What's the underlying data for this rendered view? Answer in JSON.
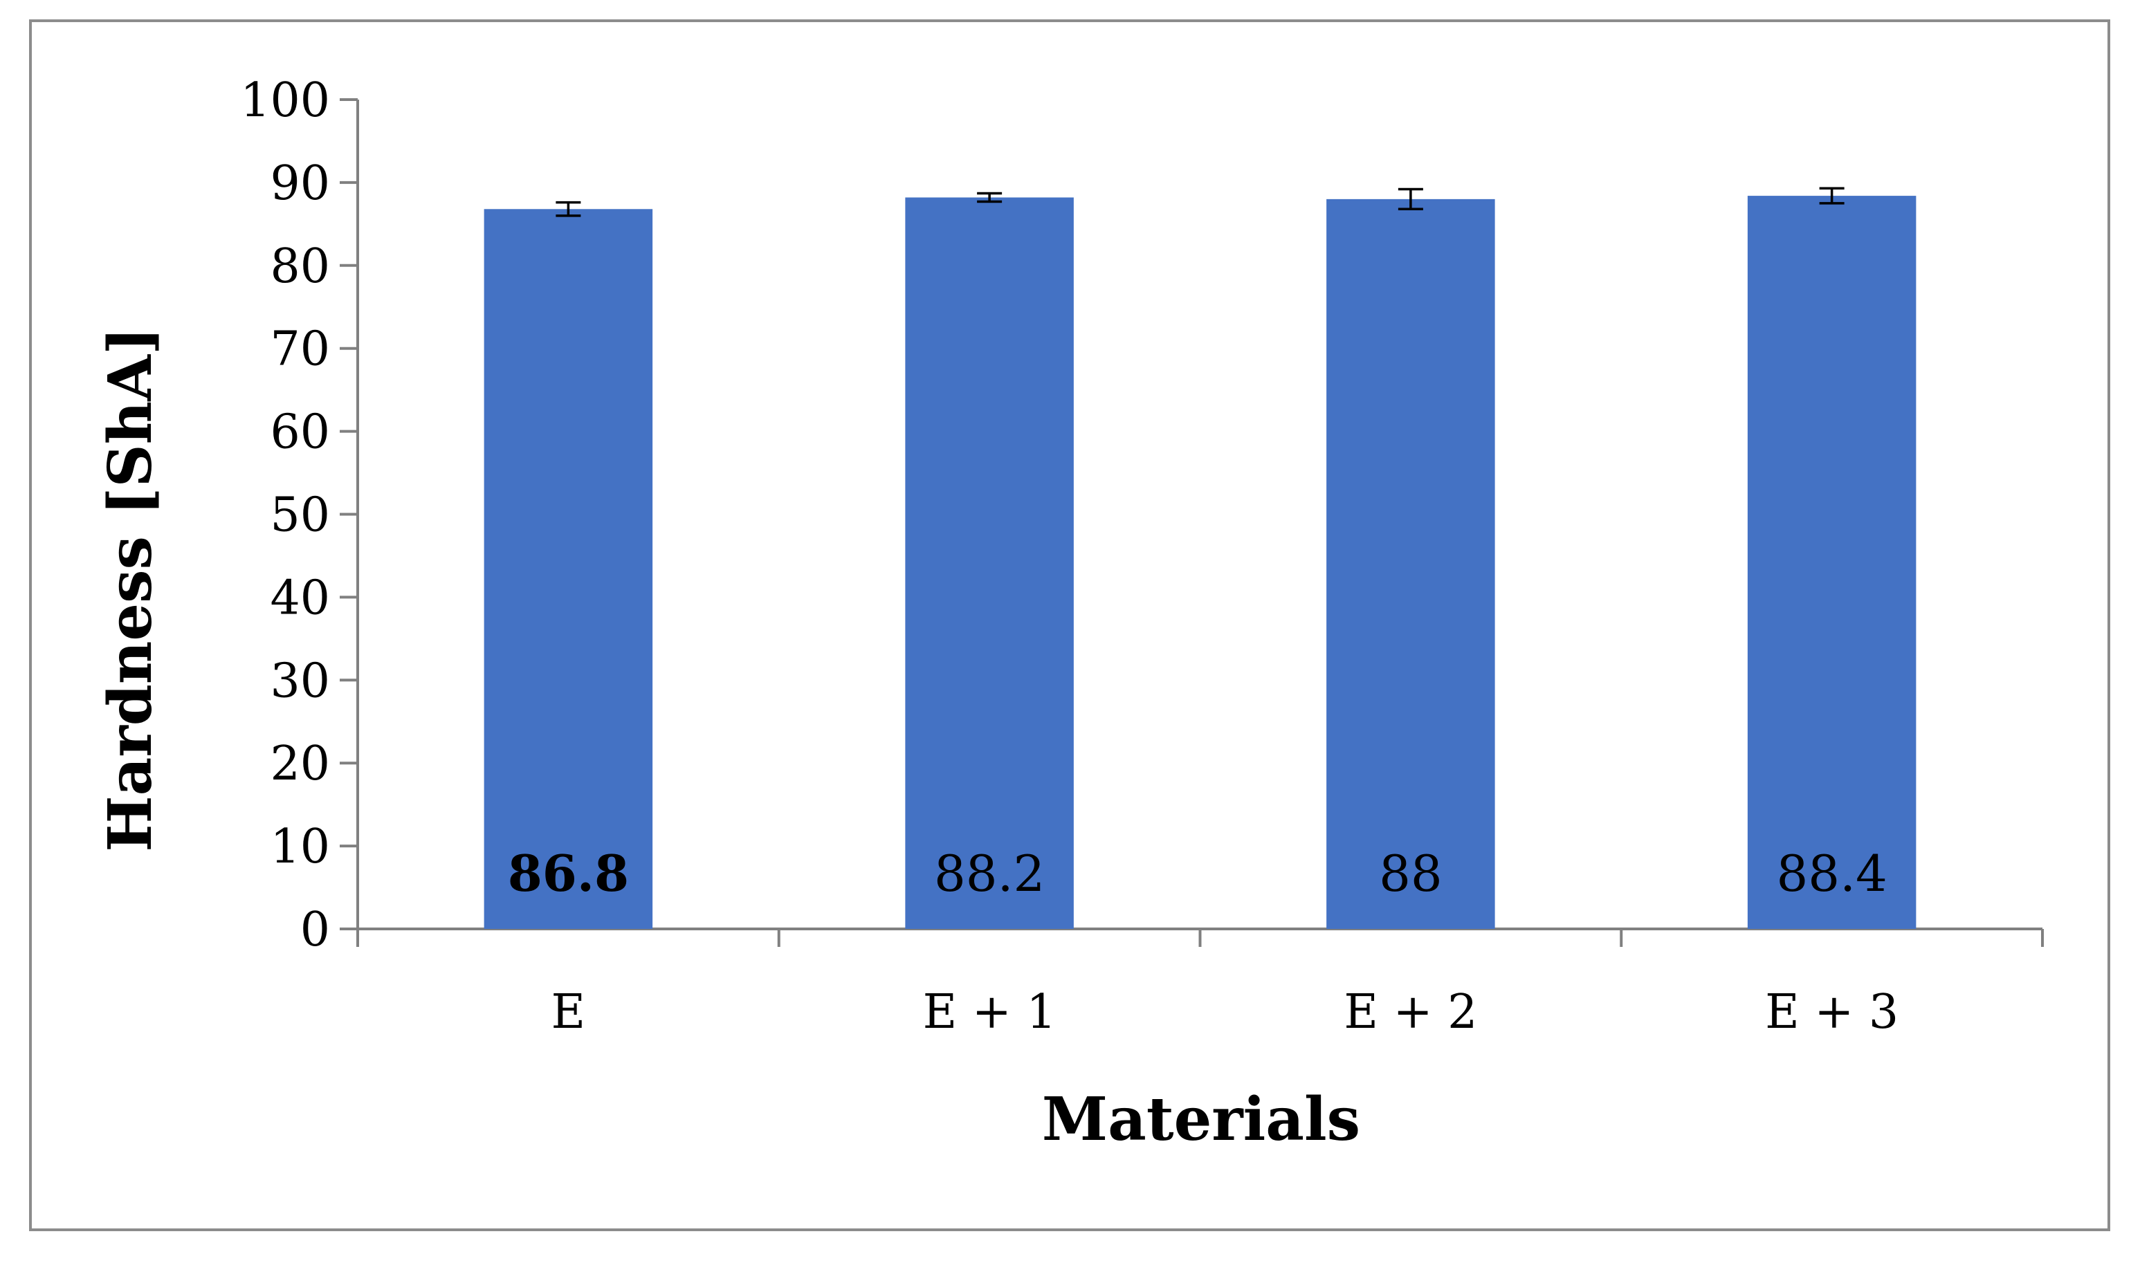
{
  "chart_data": {
    "type": "bar",
    "categories": [
      "E",
      "E + 1",
      "E + 2",
      "E + 3"
    ],
    "values": [
      86.8,
      88.2,
      88,
      88.4
    ],
    "error": [
      0.8,
      0.5,
      1.2,
      0.9
    ],
    "data_labels": [
      "86.8",
      "88.2",
      "88",
      "88.4"
    ],
    "data_label_bold": [
      true,
      false,
      false,
      false
    ],
    "title": "",
    "xlabel": "Materials",
    "ylabel": "Hardness [ShA]",
    "ylim": [
      0,
      100
    ],
    "yticks": [
      "0",
      "10",
      "20",
      "30",
      "40",
      "50",
      "60",
      "70",
      "80",
      "90",
      "100"
    ],
    "grid": false,
    "legend": "none",
    "bar_color": "#4472C4",
    "frame_color": "#8C8C8C",
    "axis_color": "#808080"
  }
}
